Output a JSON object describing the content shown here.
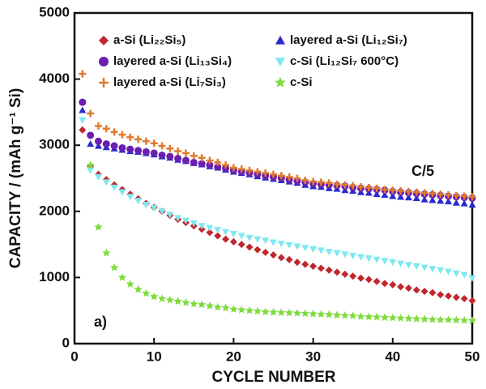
{
  "chart_data": {
    "type": "scatter",
    "x_label": "CYCLE NUMBER",
    "y_label": "CAPACITY / (mAh g⁻¹ Si)",
    "annotations": [
      "C/5",
      "a)"
    ],
    "xlim": [
      0,
      50
    ],
    "xticks": [
      0,
      10,
      20,
      30,
      40,
      50
    ],
    "ylim": [
      0,
      5000
    ],
    "yticks": [
      0,
      1000,
      2000,
      3000,
      4000,
      5000
    ],
    "x": [
      1,
      2,
      3,
      4,
      5,
      6,
      7,
      8,
      9,
      10,
      11,
      12,
      13,
      14,
      15,
      16,
      17,
      18,
      19,
      20,
      21,
      22,
      23,
      24,
      25,
      26,
      27,
      28,
      29,
      30,
      31,
      32,
      33,
      34,
      35,
      36,
      37,
      38,
      39,
      40,
      41,
      42,
      43,
      44,
      45,
      46,
      47,
      48,
      49,
      50
    ],
    "series": [
      {
        "name": "a-Si (Li₂₂Si₅)",
        "color": "#c0282d",
        "marker": "diamond",
        "values": [
          3230,
          2680,
          2560,
          2480,
          2400,
          2330,
          2260,
          2190,
          2120,
          2060,
          2000,
          1940,
          1880,
          1830,
          1780,
          1730,
          1680,
          1630,
          1580,
          1540,
          1500,
          1460,
          1420,
          1380,
          1340,
          1300,
          1270,
          1230,
          1200,
          1170,
          1140,
          1110,
          1080,
          1050,
          1020,
          990,
          970,
          940,
          910,
          890,
          860,
          840,
          810,
          790,
          770,
          740,
          720,
          700,
          680,
          650
        ]
      },
      {
        "name": "layered a-Si (Li₁₂Si₇)",
        "color": "#2a2ad0",
        "marker": "triangle",
        "values": [
          3530,
          3020,
          2990,
          2970,
          2950,
          2930,
          2910,
          2900,
          2880,
          2860,
          2830,
          2810,
          2780,
          2760,
          2730,
          2710,
          2680,
          2660,
          2630,
          2600,
          2580,
          2560,
          2530,
          2510,
          2490,
          2470,
          2450,
          2430,
          2400,
          2380,
          2370,
          2350,
          2340,
          2320,
          2310,
          2290,
          2280,
          2260,
          2250,
          2230,
          2220,
          2210,
          2200,
          2180,
          2170,
          2160,
          2150,
          2130,
          2120,
          2100
        ]
      },
      {
        "name": "layered a-Si (Li₁₃Si₄)",
        "color": "#6a1fb0",
        "marker": "circle",
        "values": [
          3650,
          3150,
          3060,
          3020,
          2990,
          2960,
          2940,
          2920,
          2900,
          2880,
          2850,
          2830,
          2800,
          2770,
          2740,
          2720,
          2700,
          2670,
          2650,
          2620,
          2600,
          2580,
          2560,
          2540,
          2520,
          2500,
          2480,
          2460,
          2440,
          2420,
          2410,
          2400,
          2390,
          2380,
          2360,
          2350,
          2340,
          2330,
          2320,
          2300,
          2290,
          2280,
          2270,
          2260,
          2250,
          2240,
          2230,
          2220,
          2210,
          2200
        ]
      },
      {
        "name": "c-Si (Li₁₂Si₇ 600°C)",
        "color": "#7fe8f0",
        "marker": "triangle-down",
        "values": [
          3380,
          2620,
          2520,
          2440,
          2360,
          2290,
          2220,
          2160,
          2100,
          2050,
          2000,
          1950,
          1900,
          1860,
          1820,
          1780,
          1750,
          1720,
          1690,
          1660,
          1630,
          1600,
          1580,
          1560,
          1530,
          1510,
          1490,
          1470,
          1450,
          1430,
          1410,
          1390,
          1370,
          1350,
          1330,
          1310,
          1290,
          1270,
          1250,
          1230,
          1210,
          1190,
          1170,
          1150,
          1130,
          1110,
          1090,
          1060,
          1040,
          990
        ]
      },
      {
        "name": "layered a-Si (Li₇Si₃)",
        "color": "#e07a30",
        "marker": "plus",
        "values": [
          4080,
          3480,
          3290,
          3250,
          3200,
          3160,
          3120,
          3090,
          3060,
          3030,
          2990,
          2950,
          2910,
          2880,
          2840,
          2810,
          2770,
          2740,
          2700,
          2660,
          2640,
          2620,
          2600,
          2580,
          2560,
          2540,
          2520,
          2500,
          2470,
          2450,
          2440,
          2430,
          2410,
          2400,
          2390,
          2370,
          2360,
          2350,
          2330,
          2320,
          2310,
          2300,
          2290,
          2280,
          2270,
          2260,
          2250,
          2240,
          2230,
          2220
        ]
      },
      {
        "name": "c-Si",
        "color": "#7ddc3c",
        "marker": "star",
        "values": [
          null,
          2700,
          1760,
          1370,
          1150,
          1000,
          900,
          820,
          760,
          710,
          680,
          660,
          640,
          620,
          600,
          590,
          570,
          550,
          540,
          520,
          510,
          500,
          490,
          480,
          475,
          470,
          465,
          460,
          455,
          450,
          445,
          440,
          430,
          425,
          420,
          410,
          405,
          400,
          395,
          390,
          385,
          380,
          375,
          370,
          365,
          360,
          360,
          355,
          350,
          350
        ]
      }
    ]
  }
}
